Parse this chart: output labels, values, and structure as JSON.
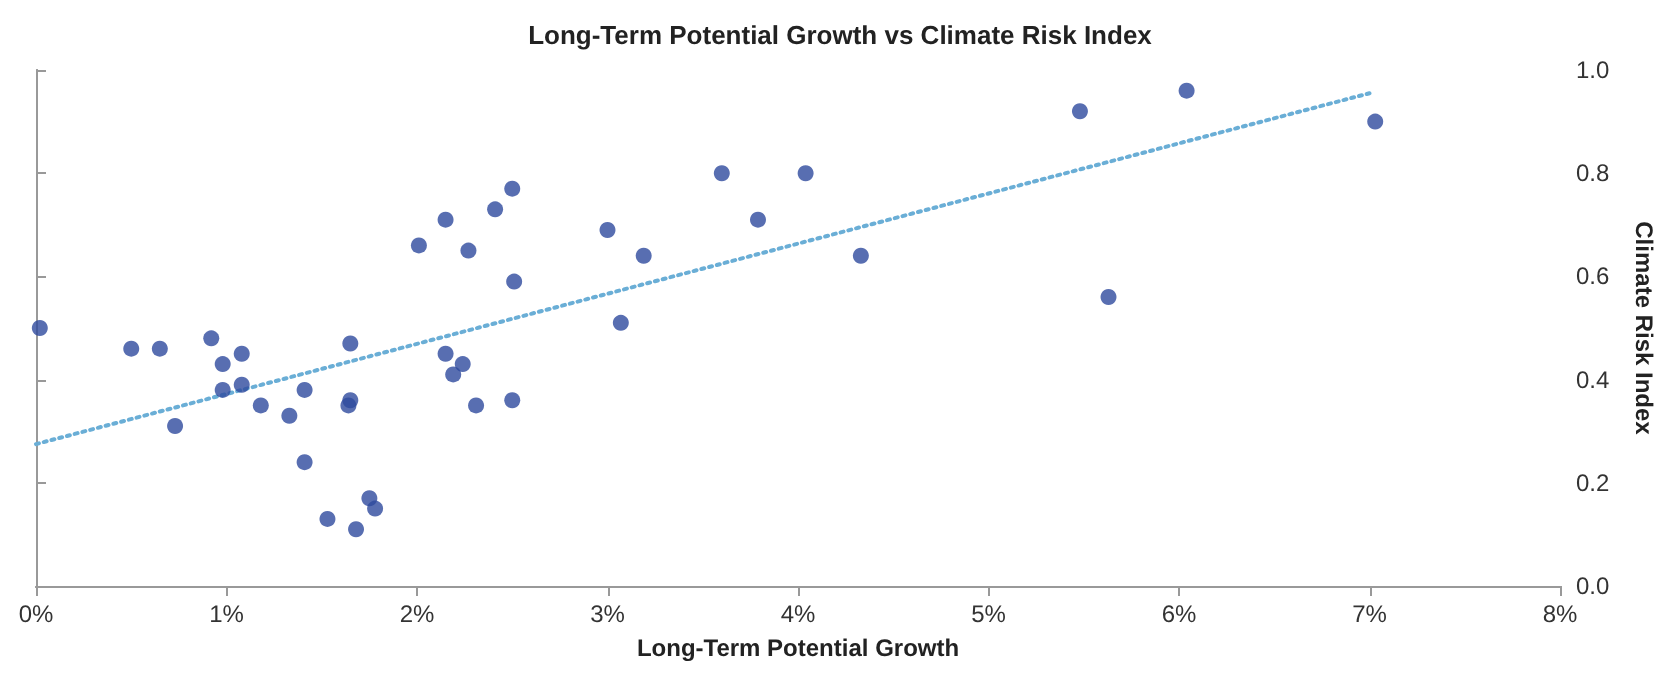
{
  "chart_data": {
    "type": "scatter",
    "title": "Long-Term Potential Growth vs Climate Risk Index",
    "xlabel": "Long-Term Potential Growth",
    "ylabel": "Climate Risk Index",
    "xlim": [
      0,
      8
    ],
    "xticks": [
      {
        "value": 0,
        "label": "0%"
      },
      {
        "value": 1,
        "label": "1%"
      },
      {
        "value": 2,
        "label": "2%"
      },
      {
        "value": 3,
        "label": "3%"
      },
      {
        "value": 4,
        "label": "4%"
      },
      {
        "value": 5,
        "label": "5%"
      },
      {
        "value": 6,
        "label": "6%"
      },
      {
        "value": 7,
        "label": "7%"
      },
      {
        "value": 8,
        "label": "8%"
      }
    ],
    "ylim": [
      0,
      1
    ],
    "yticks": [
      {
        "value": 0,
        "label": "0.0"
      },
      {
        "value": 0.2,
        "label": "0.2"
      },
      {
        "value": 0.4,
        "label": "0.4"
      },
      {
        "value": 0.6,
        "label": "0.6"
      },
      {
        "value": 0.8,
        "label": "0.8"
      },
      {
        "value": 1,
        "label": "1.0"
      }
    ],
    "grid": false,
    "marker": "circle",
    "series": [
      {
        "color": "#2e4a9e",
        "x": [
          0.02,
          0.5,
          0.65,
          0.73,
          0.92,
          0.98,
          0.98,
          1.08,
          1.08,
          1.18,
          1.33,
          1.41,
          1.41,
          1.53,
          1.65,
          1.64,
          1.65,
          1.68,
          1.75,
          1.78,
          2.01,
          2.15,
          2.27,
          2.41,
          2.5,
          2.51,
          2.15,
          2.24,
          2.19,
          2.31,
          2.5,
          3.0,
          3.07,
          3.19,
          3.6,
          3.79,
          4.04,
          4.33,
          5.48,
          5.63,
          6.04,
          7.03
        ],
        "values": [
          0.5,
          0.46,
          0.46,
          0.31,
          0.48,
          0.43,
          0.38,
          0.45,
          0.39,
          0.35,
          0.33,
          0.38,
          0.24,
          0.13,
          0.47,
          0.35,
          0.36,
          0.11,
          0.17,
          0.15,
          0.66,
          0.71,
          0.65,
          0.73,
          0.77,
          0.59,
          0.45,
          0.43,
          0.41,
          0.35,
          0.36,
          0.69,
          0.51,
          0.64,
          0.8,
          0.71,
          0.8,
          0.64,
          0.92,
          0.56,
          0.96,
          0.9
        ]
      },
      {
        "type": "line",
        "color": "#6aaed6",
        "line_style": "dotted",
        "marker": "none",
        "x": [
          0,
          7
        ],
        "values": [
          0.275,
          0.955
        ]
      }
    ]
  }
}
